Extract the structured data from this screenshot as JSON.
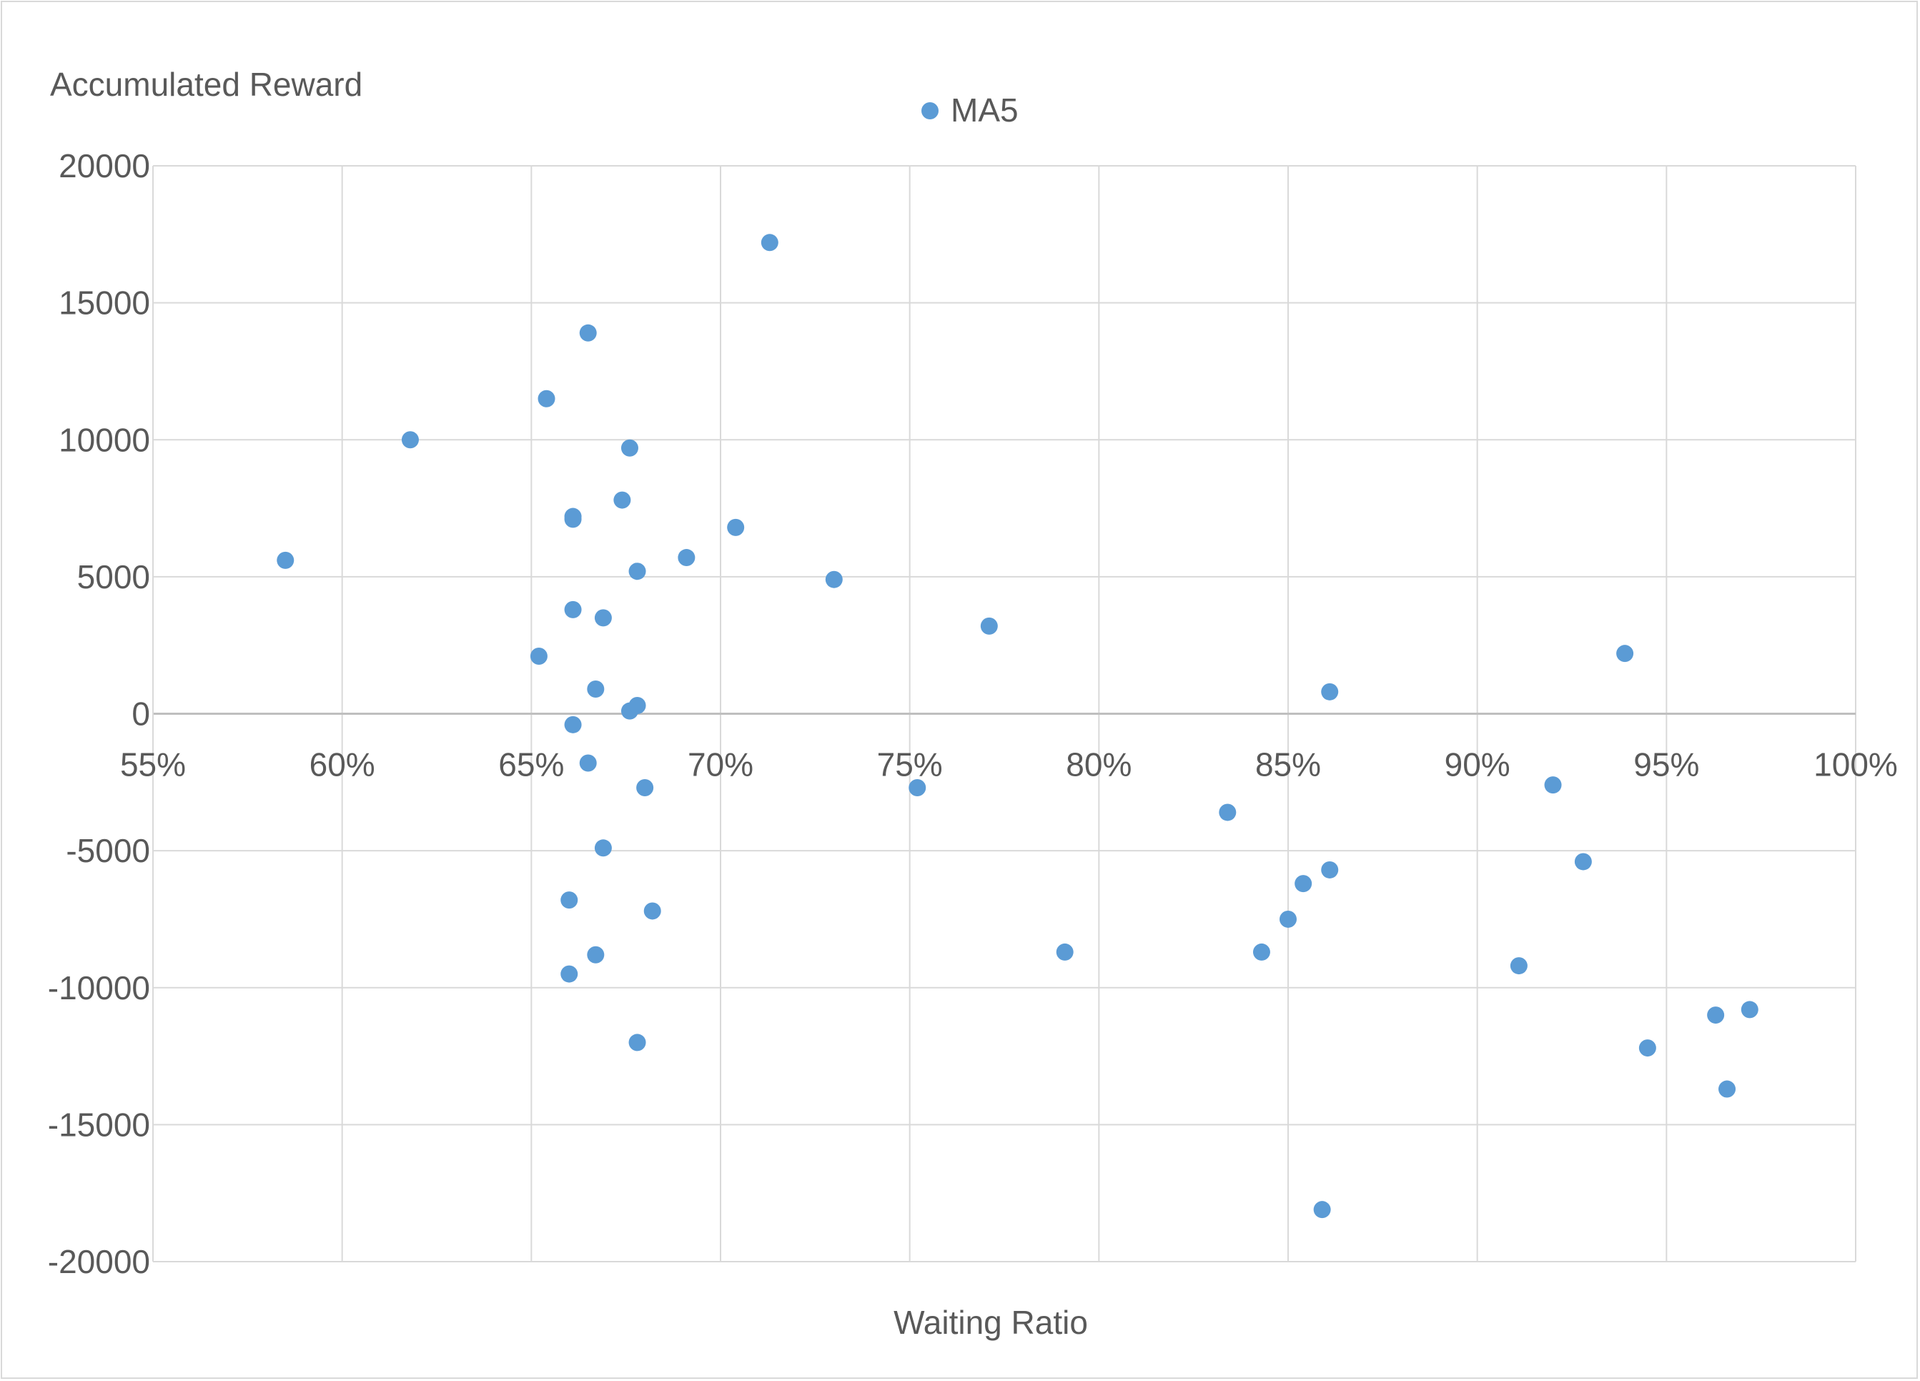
{
  "chart_data": {
    "type": "scatter",
    "title": "",
    "xlabel": "Waiting Ratio",
    "ylabel": "Accumulated Reward",
    "xlim": [
      0.55,
      1.0
    ],
    "ylim": [
      -20000,
      20000
    ],
    "x_ticks": [
      0.55,
      0.6,
      0.65,
      0.7,
      0.75,
      0.8,
      0.85,
      0.9,
      0.95,
      1.0
    ],
    "x_tick_labels": [
      "55%",
      "60%",
      "65%",
      "70%",
      "75%",
      "80%",
      "85%",
      "90%",
      "95%",
      "100%"
    ],
    "y_ticks": [
      20000,
      15000,
      10000,
      5000,
      0,
      -5000,
      -10000,
      -15000,
      -20000
    ],
    "y_tick_labels": [
      "20000",
      "15000",
      "10000",
      "5000",
      "0",
      "-5000",
      "-10000",
      "-15000",
      "-20000"
    ],
    "grid": true,
    "legend_position": "top-center",
    "series": [
      {
        "name": "MA5",
        "color": "#5b9bd5",
        "points": [
          [
            0.585,
            5600
          ],
          [
            0.618,
            10000
          ],
          [
            0.652,
            2100
          ],
          [
            0.654,
            11500
          ],
          [
            0.66,
            -9500
          ],
          [
            0.66,
            -6800
          ],
          [
            0.661,
            7100
          ],
          [
            0.661,
            7200
          ],
          [
            0.661,
            3800
          ],
          [
            0.661,
            -400
          ],
          [
            0.665,
            13900
          ],
          [
            0.665,
            -1800
          ],
          [
            0.667,
            900
          ],
          [
            0.667,
            -8800
          ],
          [
            0.669,
            3500
          ],
          [
            0.669,
            -4900
          ],
          [
            0.674,
            7800
          ],
          [
            0.676,
            9700
          ],
          [
            0.676,
            100
          ],
          [
            0.678,
            300
          ],
          [
            0.678,
            5200
          ],
          [
            0.678,
            -12000
          ],
          [
            0.68,
            -2700
          ],
          [
            0.682,
            -7200
          ],
          [
            0.691,
            5700
          ],
          [
            0.704,
            6800
          ],
          [
            0.713,
            17200
          ],
          [
            0.73,
            4900
          ],
          [
            0.752,
            -2700
          ],
          [
            0.771,
            3200
          ],
          [
            0.791,
            -8700
          ],
          [
            0.834,
            -3600
          ],
          [
            0.843,
            -8700
          ],
          [
            0.85,
            -7500
          ],
          [
            0.854,
            -6200
          ],
          [
            0.859,
            -18100
          ],
          [
            0.861,
            800
          ],
          [
            0.861,
            -5700
          ],
          [
            0.911,
            -9200
          ],
          [
            0.92,
            -2600
          ],
          [
            0.928,
            -5400
          ],
          [
            0.939,
            2200
          ],
          [
            0.945,
            -12200
          ],
          [
            0.963,
            -11000
          ],
          [
            0.966,
            -13700
          ],
          [
            0.972,
            -10800
          ]
        ]
      }
    ]
  }
}
